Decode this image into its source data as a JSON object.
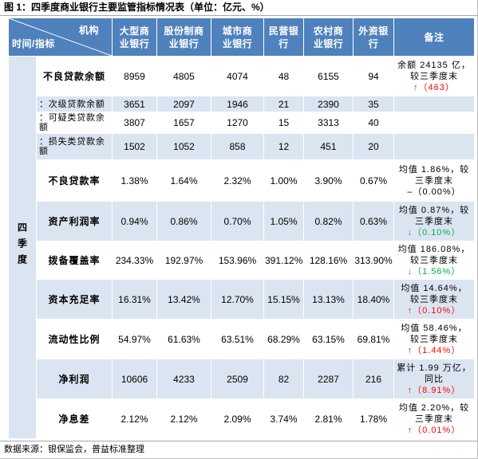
{
  "colors": {
    "header": "#4f81bd",
    "band": "#dbe5f1",
    "up": "#ff0000",
    "down": "#00b050",
    "flat": "#000000"
  },
  "chart_data": {
    "type": "table",
    "title": "图 1：四季度商业银行主要监管指标情况表（单位：亿元、%）",
    "corner_column_label": "机构",
    "corner_row_label": "时间/指标",
    "columns": [
      "大型商业银行",
      "股份制商业银行",
      "城市商业银行",
      "民营银行",
      "农村商业银行",
      "外资银行"
    ],
    "remark_header": "备注",
    "period": "四季度",
    "rows": [
      {
        "indicator": "不良贷款余额",
        "values": [
          "8959",
          "4805",
          "4074",
          "48",
          "6155",
          "94"
        ],
        "remark": {
          "text": "余额 24135 亿，较三季度末",
          "delta": "↑（463）"
        }
      },
      {
        "indicator": "：次级贷款余额",
        "values": [
          "3651",
          "2097",
          "1946",
          "21",
          "2390",
          "35"
        ],
        "remark": null
      },
      {
        "indicator": "：可疑类贷款余额",
        "values": [
          "3807",
          "1657",
          "1270",
          "15",
          "3313",
          "40"
        ],
        "remark": null
      },
      {
        "indicator": "：损失类贷款余额",
        "values": [
          "1502",
          "1052",
          "858",
          "12",
          "451",
          "20"
        ],
        "remark": null
      },
      {
        "indicator": "不良贷款率",
        "values": [
          "1.38%",
          "1.64%",
          "2.32%",
          "1.00%",
          "3.90%",
          "0.67%"
        ],
        "remark": {
          "text": "均值 1.86%，较三季度末",
          "delta": "–（0.00%）"
        }
      },
      {
        "indicator": "资产利润率",
        "values": [
          "0.94%",
          "0.86%",
          "0.70%",
          "1.05%",
          "0.82%",
          "0.63%"
        ],
        "remark": {
          "text": "均值 0.87%，较三季度末",
          "delta": "↓（0.10%）"
        }
      },
      {
        "indicator": "拨备覆盖率",
        "values": [
          "234.33%",
          "192.97%",
          "153.96%",
          "391.12%",
          "128.16%",
          "313.90%"
        ],
        "remark": {
          "text": "均值 186.08%，较三季度末",
          "delta": "↓（1.56%）"
        }
      },
      {
        "indicator": "资本充足率",
        "values": [
          "16.31%",
          "13.42%",
          "12.70%",
          "15.15%",
          "13.13%",
          "18.40%"
        ],
        "remark": {
          "text": "均值 14.64%，较三季度末",
          "delta": "↑（0.10%）"
        }
      },
      {
        "indicator": "流动性比例",
        "values": [
          "54.97%",
          "61.63%",
          "63.51%",
          "68.29%",
          "63.15%",
          "69.81%"
        ],
        "remark": {
          "text": "均值 58.46%，较三季度末",
          "delta": "↑（1.44%）"
        }
      },
      {
        "indicator": "净利润",
        "values": [
          "10606",
          "4233",
          "2509",
          "82",
          "2287",
          "216"
        ],
        "remark": {
          "text": "累计 1.99 万亿，同比",
          "delta": "↑（8.91%）"
        }
      },
      {
        "indicator": "净息差",
        "values": [
          "2.12%",
          "2.12%",
          "2.09%",
          "3.74%",
          "2.81%",
          "1.78%"
        ],
        "remark": {
          "text": "均值 2.20%，较三季度末",
          "delta": "↑（0.01%）"
        }
      }
    ],
    "source": "数据来源：银保监会，普益标准整理"
  }
}
